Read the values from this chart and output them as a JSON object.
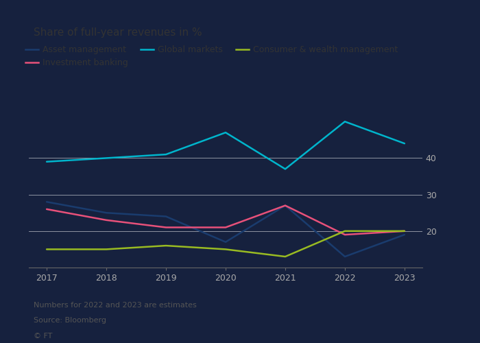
{
  "title": "Share of full-year revenues in %",
  "footnotes": [
    "Numbers for 2022 and 2023 are estimates",
    "Source: Bloomberg",
    "© FT"
  ],
  "years": [
    2017,
    2018,
    2019,
    2020,
    2021,
    2022,
    2023
  ],
  "series": [
    {
      "name": "Asset management",
      "color": "#1a3c6e",
      "values": [
        28,
        25,
        24,
        17,
        27,
        13,
        19
      ]
    },
    {
      "name": "Investment banking",
      "color": "#e8517a",
      "values": [
        26,
        23,
        21,
        21,
        27,
        19,
        20
      ]
    },
    {
      "name": "Global markets",
      "color": "#00b5cc",
      "values": [
        39,
        40,
        41,
        47,
        37,
        50,
        44
      ]
    },
    {
      "name": "Consumer & wealth management",
      "color": "#99bb22",
      "values": [
        15,
        15,
        16,
        15,
        13,
        20,
        20
      ]
    }
  ],
  "ylim": [
    10,
    57
  ],
  "yticks": [
    20,
    30,
    40
  ],
  "ytick_labels": [
    "20",
    "30",
    "40"
  ],
  "background_color": "#1a1a2e",
  "plot_bg_color": "#1a1a2e",
  "grid_color": "#ffffff",
  "text_color": "#cccccc",
  "title_color": "#333333",
  "axis_label_color": "#888888",
  "title_fontsize": 11,
  "label_fontsize": 9,
  "legend_fontsize": 9,
  "footnote_fontsize": 8,
  "line_width": 1.8
}
